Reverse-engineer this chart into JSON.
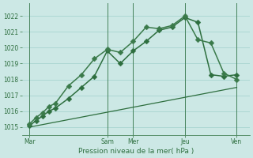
{
  "xlabel": "Pression niveau de la mer( hPa )",
  "bg_color": "#cce8e5",
  "grid_color": "#a8d4d0",
  "line_color": "#2d6e3e",
  "line_color2": "#3a7a4a",
  "ylim": [
    1014.5,
    1022.8
  ],
  "xlim": [
    -0.3,
    8.5
  ],
  "xtick_labels": [
    "Mar",
    "Sam",
    "Mer",
    "Jeu",
    "Ven"
  ],
  "xtick_positions": [
    0,
    3.0,
    4.0,
    6.0,
    8.0
  ],
  "series1_x": [
    0,
    0.25,
    0.5,
    0.75,
    1.0,
    1.5,
    2.0,
    2.5,
    3.0,
    3.5,
    4.0,
    4.5,
    5.0,
    5.5,
    6.0,
    6.5,
    7.0,
    7.5,
    8.0
  ],
  "series1_y": [
    1015.1,
    1015.4,
    1015.7,
    1016.0,
    1016.2,
    1016.8,
    1017.5,
    1018.2,
    1019.8,
    1019.0,
    1019.8,
    1020.4,
    1021.1,
    1021.3,
    1021.9,
    1021.6,
    1018.3,
    1018.2,
    1018.3
  ],
  "series2_x": [
    0,
    0.25,
    0.5,
    0.75,
    1.0,
    1.5,
    2.0,
    2.5,
    3.0,
    3.5,
    4.0,
    4.5,
    5.0,
    5.5,
    6.0,
    6.5,
    7.0,
    7.5,
    8.0
  ],
  "series2_y": [
    1015.2,
    1015.6,
    1015.9,
    1016.3,
    1016.5,
    1017.6,
    1018.3,
    1019.3,
    1019.9,
    1019.7,
    1020.4,
    1021.3,
    1021.2,
    1021.4,
    1022.0,
    1020.5,
    1020.3,
    1018.4,
    1018.0
  ],
  "series3_x": [
    0,
    8.0
  ],
  "series3_y": [
    1015.0,
    1017.5
  ],
  "ytick_values": [
    1015,
    1016,
    1017,
    1018,
    1019,
    1020,
    1021,
    1022
  ],
  "vline_positions": [
    0,
    3.0,
    4.0,
    6.0,
    8.0
  ],
  "markersize": 3.5,
  "linewidth": 1.1,
  "linewidth_thin": 0.9
}
